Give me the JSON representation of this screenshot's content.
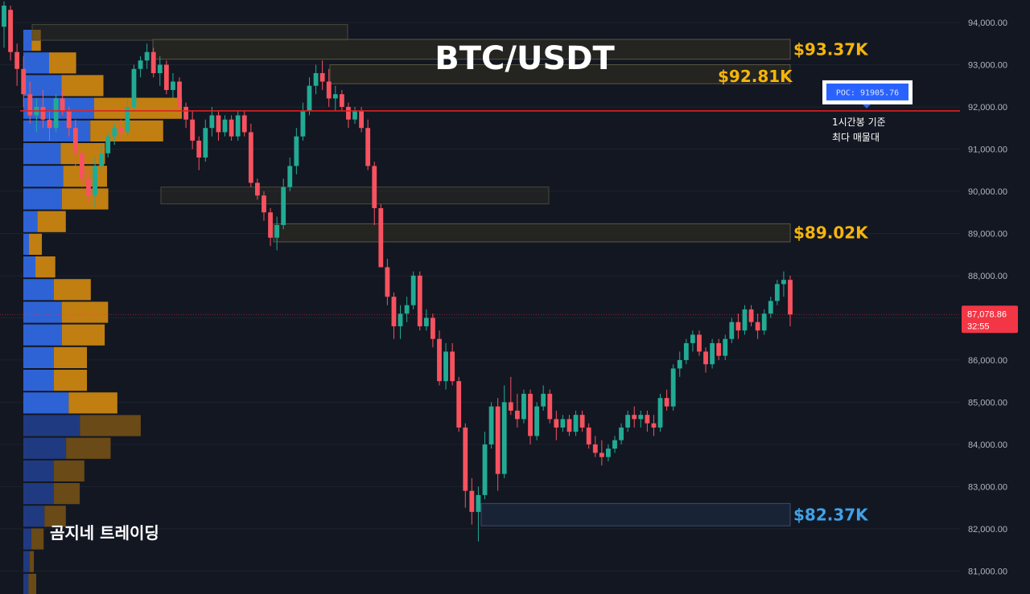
{
  "chart_data": {
    "type": "candlestick",
    "title": "BTC/USDT",
    "y_ticks": [
      "94,000.00",
      "93,000.00",
      "92,000.00",
      "91,000.00",
      "90,000.00",
      "89,000.00",
      "88,000.00",
      "87,000.00",
      "86,000.00",
      "85,000.00",
      "84,000.00",
      "83,000.00",
      "82,000.00",
      "81,000.00"
    ],
    "y_tick_values": [
      94000,
      93000,
      92000,
      91000,
      90000,
      89000,
      88000,
      87000,
      86000,
      85000,
      84000,
      83000,
      82000,
      81000
    ],
    "ylim": [
      80480,
      94700
    ],
    "current_price": 87078.86,
    "current_price_label": "87,078.86",
    "countdown": "32:55",
    "poc": {
      "value": 91905.76,
      "label": "POC: 91905.76",
      "note_line1": "1시간봉 기준",
      "note_line2": "최다 매물대"
    },
    "zones": [
      {
        "label": "$93.37K",
        "low": 93130,
        "high": 93600,
        "color": "#f5b50a"
      },
      {
        "label": "$92.81K",
        "low": 92550,
        "high": 93000,
        "color": "#f5b50a"
      },
      {
        "label": "$89.02K",
        "low": 88800,
        "high": 89230,
        "color": "#f5b50a"
      },
      {
        "label": "$82.37K",
        "low": 82070,
        "high": 82600,
        "color": "#3fa2e8"
      }
    ],
    "extra_zones": [
      {
        "low": 93580,
        "high": 93950
      },
      {
        "low": 89700,
        "high": 90100
      }
    ],
    "volume_profile": [
      {
        "a": 0.32,
        "b": 0.36
      },
      {
        "a": 1.0,
        "b": 1.05
      },
      {
        "a": 1.48,
        "b": 1.63
      },
      {
        "a": 2.75,
        "b": 3.41
      },
      {
        "a": 2.6,
        "b": 2.83
      },
      {
        "a": 1.45,
        "b": 1.72
      },
      {
        "a": 1.55,
        "b": 1.7
      },
      {
        "a": 1.5,
        "b": 1.8
      },
      {
        "a": 0.55,
        "b": 1.1
      },
      {
        "a": 0.22,
        "b": 0.5
      },
      {
        "a": 0.47,
        "b": 0.77
      },
      {
        "a": 1.18,
        "b": 1.44
      },
      {
        "a": 1.49,
        "b": 1.8
      },
      {
        "a": 1.5,
        "b": 1.66
      },
      {
        "a": 1.18,
        "b": 1.29
      },
      {
        "a": 1.18,
        "b": 1.29
      },
      {
        "a": 1.76,
        "b": 1.89
      },
      {
        "a": 2.2,
        "b": 2.36
      },
      {
        "a": 1.66,
        "b": 1.73
      },
      {
        "a": 1.18,
        "b": 1.19
      },
      {
        "a": 1.18,
        "b": 1.01
      },
      {
        "a": 0.82,
        "b": 0.83
      },
      {
        "a": 0.31,
        "b": 0.48
      },
      {
        "a": 0.24,
        "b": 0.17
      },
      {
        "a": 0.2,
        "b": 0.3
      }
    ],
    "candles": [
      [
        93900,
        94500,
        93400,
        94400
      ],
      [
        94300,
        94400,
        93100,
        93300
      ],
      [
        93300,
        93500,
        92500,
        92900
      ],
      [
        92900,
        93200,
        92000,
        92300
      ],
      [
        92300,
        92600,
        91600,
        91800
      ],
      [
        91800,
        92200,
        91400,
        92000
      ],
      [
        92000,
        92400,
        91500,
        91700
      ],
      [
        91700,
        91900,
        91200,
        91500
      ],
      [
        91500,
        92300,
        91400,
        92200
      ],
      [
        92200,
        92400,
        91800,
        91900
      ],
      [
        91900,
        92000,
        91300,
        91500
      ],
      [
        91500,
        91700,
        90600,
        90900
      ],
      [
        90900,
        91000,
        90100,
        90300
      ],
      [
        90300,
        90500,
        89700,
        89900
      ],
      [
        89900,
        90800,
        89600,
        90600
      ],
      [
        90600,
        91100,
        90500,
        90900
      ],
      [
        90900,
        91400,
        90800,
        91300
      ],
      [
        91300,
        91600,
        91100,
        91500
      ],
      [
        91500,
        91700,
        91200,
        91400
      ],
      [
        91400,
        92200,
        91300,
        92000
      ],
      [
        92000,
        93000,
        91900,
        92900
      ],
      [
        92900,
        93200,
        92700,
        93100
      ],
      [
        93100,
        93500,
        92900,
        93300
      ],
      [
        93300,
        93400,
        92700,
        92800
      ],
      [
        92800,
        93200,
        92500,
        93000
      ],
      [
        93000,
        93100,
        92300,
        92400
      ],
      [
        92400,
        92800,
        92200,
        92600
      ],
      [
        92600,
        92700,
        91800,
        92000
      ],
      [
        92000,
        92100,
        91500,
        91700
      ],
      [
        91700,
        91900,
        91000,
        91200
      ],
      [
        91200,
        91300,
        90500,
        90800
      ],
      [
        90800,
        91700,
        90700,
        91500
      ],
      [
        91500,
        92000,
        91300,
        91800
      ],
      [
        91800,
        91900,
        91200,
        91400
      ],
      [
        91400,
        91800,
        91300,
        91700
      ],
      [
        91700,
        91800,
        91200,
        91300
      ],
      [
        91300,
        91900,
        91200,
        91800
      ],
      [
        91800,
        91900,
        91300,
        91400
      ],
      [
        91400,
        91600,
        90100,
        90200
      ],
      [
        90200,
        90300,
        89800,
        89900
      ],
      [
        89900,
        90000,
        89300,
        89500
      ],
      [
        89500,
        89600,
        88700,
        88900
      ],
      [
        88900,
        89400,
        88600,
        89200
      ],
      [
        89200,
        90300,
        89100,
        90100
      ],
      [
        90100,
        90800,
        90000,
        90600
      ],
      [
        90600,
        91500,
        90400,
        91300
      ],
      [
        91300,
        92100,
        91200,
        91900
      ],
      [
        91900,
        92700,
        91800,
        92500
      ],
      [
        92500,
        93000,
        92300,
        92800
      ],
      [
        92800,
        93100,
        92400,
        92600
      ],
      [
        92600,
        92900,
        92000,
        92200
      ],
      [
        92200,
        92500,
        91900,
        92300
      ],
      [
        92300,
        92400,
        91900,
        92000
      ],
      [
        92000,
        92100,
        91500,
        91700
      ],
      [
        91700,
        92000,
        91600,
        91900
      ],
      [
        91900,
        92000,
        91400,
        91500
      ],
      [
        91500,
        91700,
        90500,
        90600
      ],
      [
        90600,
        90700,
        89200,
        89600
      ],
      [
        89600,
        89700,
        88200,
        88200
      ],
      [
        88200,
        88400,
        87300,
        87500
      ],
      [
        87500,
        87600,
        86500,
        86800
      ],
      [
        86800,
        87300,
        86500,
        87100
      ],
      [
        87100,
        87500,
        86900,
        87300
      ],
      [
        87300,
        88100,
        87200,
        88000
      ],
      [
        88000,
        88100,
        86700,
        86800
      ],
      [
        86800,
        87200,
        86700,
        87000
      ],
      [
        87000,
        87100,
        86300,
        86500
      ],
      [
        86500,
        86700,
        85400,
        85500
      ],
      [
        85500,
        86400,
        85300,
        86200
      ],
      [
        86200,
        86400,
        85400,
        85500
      ],
      [
        85500,
        85600,
        84300,
        84400
      ],
      [
        84400,
        84500,
        82500,
        82900
      ],
      [
        82900,
        83200,
        82100,
        82400
      ],
      [
        82400,
        83000,
        81700,
        82800
      ],
      [
        82800,
        84300,
        82700,
        84000
      ],
      [
        84000,
        85000,
        83900,
        84900
      ],
      [
        84900,
        85100,
        82900,
        83300
      ],
      [
        83300,
        85400,
        83200,
        85000
      ],
      [
        85000,
        85600,
        84700,
        84800
      ],
      [
        84800,
        85200,
        84400,
        84600
      ],
      [
        84600,
        85300,
        84500,
        85200
      ],
      [
        85200,
        85300,
        84000,
        84200
      ],
      [
        84200,
        85000,
        84100,
        84900
      ],
      [
        84900,
        85400,
        84800,
        85200
      ],
      [
        85200,
        85300,
        84500,
        84600
      ],
      [
        84600,
        84800,
        84100,
        84400
      ],
      [
        84400,
        84700,
        84300,
        84600
      ],
      [
        84600,
        84700,
        84200,
        84300
      ],
      [
        84300,
        84800,
        84200,
        84700
      ],
      [
        84700,
        84800,
        84300,
        84400
      ],
      [
        84400,
        84500,
        83900,
        84000
      ],
      [
        84000,
        84200,
        83700,
        83800
      ],
      [
        83800,
        84100,
        83500,
        83700
      ],
      [
        83700,
        84000,
        83600,
        83900
      ],
      [
        83900,
        84200,
        83800,
        84100
      ],
      [
        84100,
        84500,
        84000,
        84400
      ],
      [
        84400,
        84800,
        84300,
        84700
      ],
      [
        84700,
        84900,
        84400,
        84600
      ],
      [
        84600,
        84800,
        84400,
        84700
      ],
      [
        84700,
        84800,
        84300,
        84500
      ],
      [
        84500,
        84700,
        84200,
        84400
      ],
      [
        84400,
        85200,
        84300,
        85100
      ],
      [
        85100,
        85300,
        84800,
        84900
      ],
      [
        84900,
        85900,
        84800,
        85800
      ],
      [
        85800,
        86200,
        85600,
        86000
      ],
      [
        86000,
        86500,
        85900,
        86400
      ],
      [
        86400,
        86700,
        86200,
        86600
      ],
      [
        86600,
        86700,
        86100,
        86200
      ],
      [
        86200,
        86300,
        85700,
        85900
      ],
      [
        85900,
        86500,
        85800,
        86400
      ],
      [
        86400,
        86500,
        86000,
        86100
      ],
      [
        86100,
        86600,
        86000,
        86500
      ],
      [
        86500,
        87000,
        86400,
        86900
      ],
      [
        86900,
        87100,
        86500,
        86700
      ],
      [
        86700,
        87300,
        86600,
        87200
      ],
      [
        87200,
        87300,
        86800,
        86900
      ],
      [
        86900,
        87100,
        86500,
        86700
      ],
      [
        86700,
        87200,
        86600,
        87100
      ],
      [
        87100,
        87500,
        87000,
        87400
      ],
      [
        87400,
        87900,
        87300,
        87800
      ],
      [
        87800,
        88100,
        87500,
        87900
      ],
      [
        87900,
        88000,
        86800,
        87079
      ]
    ]
  }
}
